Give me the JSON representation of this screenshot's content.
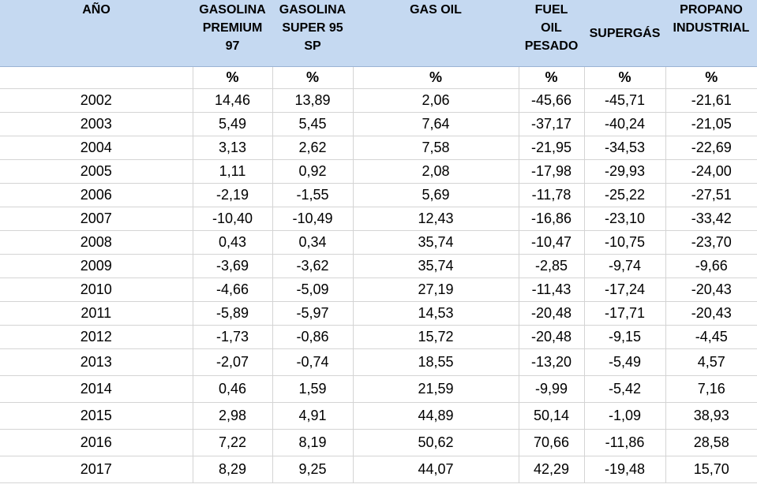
{
  "headers": [
    {
      "lines": [
        "AÑO"
      ]
    },
    {
      "lines": [
        "GASOLINA",
        "PREMIUM",
        "97"
      ]
    },
    {
      "lines": [
        "GASOLINA",
        "SUPER 95",
        "SP"
      ]
    },
    {
      "lines": [
        "GAS OIL"
      ]
    },
    {
      "lines": [
        "FUEL",
        "OIL",
        "PESADO"
      ]
    },
    {
      "lines": [
        "SUPERGÁS"
      ]
    },
    {
      "lines": [
        "PROPANO",
        "INDUSTRIAL"
      ]
    }
  ],
  "units": [
    "",
    "%",
    "%",
    "%",
    "%",
    "%",
    "%"
  ],
  "rows": [
    [
      "2002",
      "14,46",
      "13,89",
      "2,06",
      "-45,66",
      "-45,71",
      "-21,61"
    ],
    [
      "2003",
      "5,49",
      "5,45",
      "7,64",
      "-37,17",
      "-40,24",
      "-21,05"
    ],
    [
      "2004",
      "3,13",
      "2,62",
      "7,58",
      "-21,95",
      "-34,53",
      "-22,69"
    ],
    [
      "2005",
      "1,11",
      "0,92",
      "2,08",
      "-17,98",
      "-29,93",
      "-24,00"
    ],
    [
      "2006",
      "-2,19",
      "-1,55",
      "5,69",
      "-11,78",
      "-25,22",
      "-27,51"
    ],
    [
      "2007",
      "-10,40",
      "-10,49",
      "12,43",
      "-16,86",
      "-23,10",
      "-33,42"
    ],
    [
      "2008",
      "0,43",
      "0,34",
      "35,74",
      "-10,47",
      "-10,75",
      "-23,70"
    ],
    [
      "2009",
      "-3,69",
      "-3,62",
      "35,74",
      "-2,85",
      "-9,74",
      "-9,66"
    ],
    [
      "2010",
      "-4,66",
      "-5,09",
      "27,19",
      "-11,43",
      "-17,24",
      "-20,43"
    ],
    [
      "2011",
      "-5,89",
      "-5,97",
      "14,53",
      "-20,48",
      "-17,71",
      "-20,43"
    ],
    [
      "2012",
      "-1,73",
      "-0,86",
      "15,72",
      "-20,48",
      "-9,15",
      "-4,45"
    ],
    [
      "2013",
      "-2,07",
      "-0,74",
      "18,55",
      "-13,20",
      "-5,49",
      "4,57"
    ],
    [
      "2014",
      "0,46",
      "1,59",
      "21,59",
      "-9,99",
      "-5,42",
      "7,16"
    ],
    [
      "2015",
      "2,98",
      "4,91",
      "44,89",
      "50,14",
      "-1,09",
      "38,93"
    ],
    [
      "2016",
      "7,22",
      "8,19",
      "50,62",
      "70,66",
      "-11,86",
      "28,58"
    ],
    [
      "2017",
      "8,29",
      "9,25",
      "44,07",
      "42,29",
      "-19,48",
      "15,70"
    ]
  ]
}
